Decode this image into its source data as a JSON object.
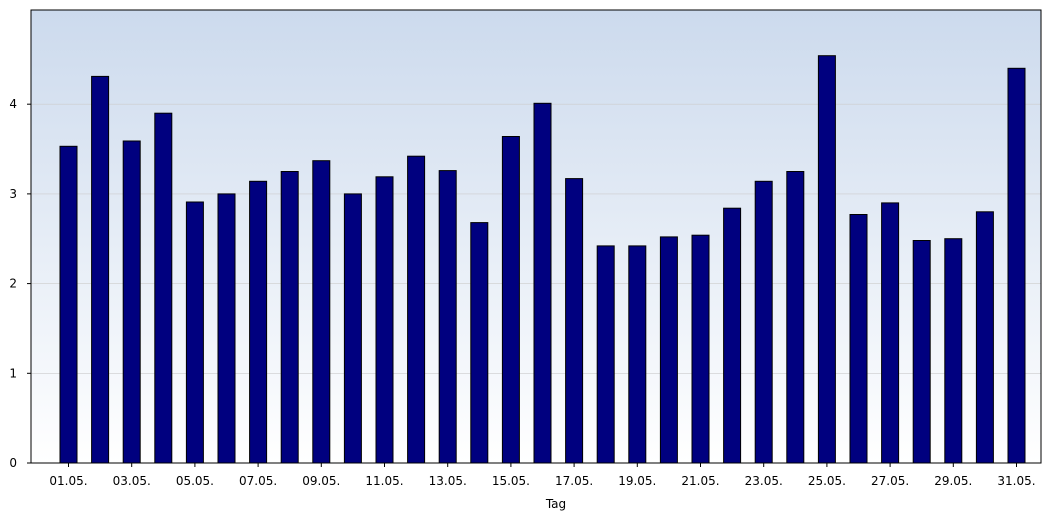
{
  "chart_data": {
    "type": "bar",
    "categories": [
      "01.05.",
      "02.05.",
      "03.05.",
      "04.05.",
      "05.05.",
      "06.05.",
      "07.05.",
      "08.05.",
      "09.05.",
      "10.05.",
      "11.05.",
      "12.05.",
      "13.05.",
      "14.05.",
      "15.05.",
      "16.05.",
      "17.05.",
      "18.05.",
      "19.05.",
      "20.05.",
      "21.05.",
      "22.05.",
      "23.05.",
      "24.05.",
      "25.05.",
      "26.05.",
      "27.05.",
      "28.05.",
      "29.05.",
      "30.05.",
      "31.05."
    ],
    "values": [
      3.53,
      4.31,
      3.59,
      3.9,
      2.91,
      3.0,
      3.14,
      3.25,
      3.37,
      3.0,
      3.19,
      3.42,
      3.26,
      2.68,
      3.64,
      4.01,
      3.17,
      2.42,
      2.42,
      2.52,
      2.54,
      2.84,
      3.14,
      3.25,
      4.54,
      2.77,
      2.9,
      2.48,
      2.5,
      2.8,
      4.4
    ],
    "x_tick_labels": [
      "01.05.",
      "03.05.",
      "05.05.",
      "07.05.",
      "09.05.",
      "11.05.",
      "13.05.",
      "15.05.",
      "17.05.",
      "19.05.",
      "21.05.",
      "23.05.",
      "25.05.",
      "27.05.",
      "29.05.",
      "31.05."
    ],
    "y_ticks": [
      "0",
      "1",
      "2",
      "3",
      "4"
    ],
    "xlabel": "Tag",
    "ylabel": "",
    "ylim": [
      0,
      5.05
    ],
    "grid": true,
    "colors": {
      "bar": "#00007f",
      "bar_border": "#000000",
      "background_top": "#ccdaed",
      "background_bottom": "#ffffff",
      "grid": "#cccccc"
    }
  }
}
